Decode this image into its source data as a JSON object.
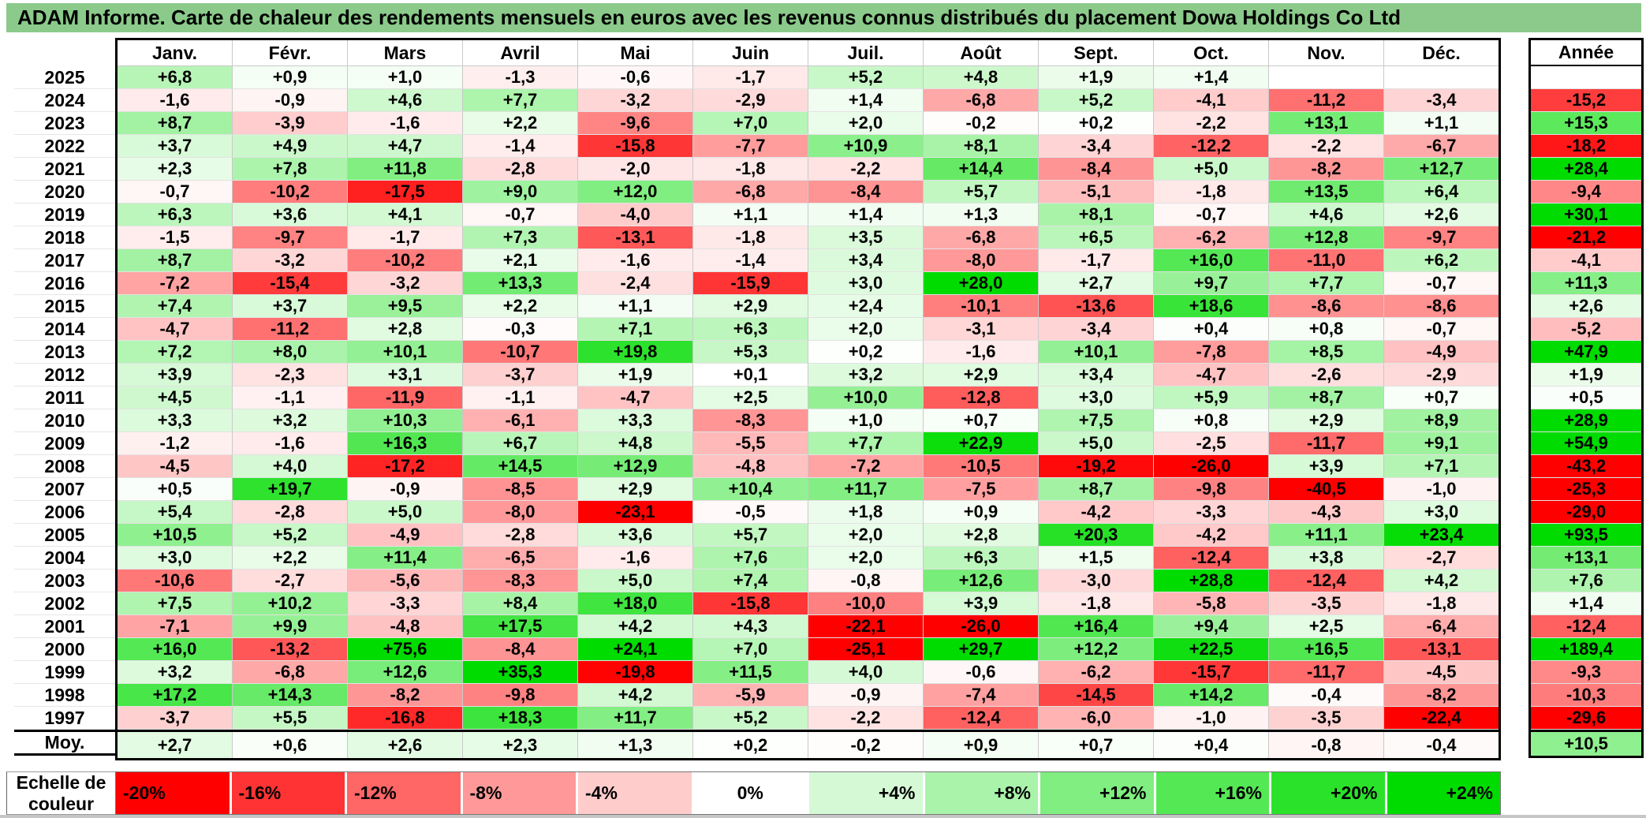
{
  "title": "ADAM Informe. Carte de chaleur des rendements mensuels en euros avec les revenus connus distribués du placement Dowa Holdings Co Ltd",
  "theme": {
    "title_bg": "#8BCA8B",
    "grid_vertical": "#c9c9c9",
    "grid_horizontal": "#e2e2e2",
    "table_border": "#000000",
    "negative_color": "#FF0000",
    "positive_color": "#00DC00",
    "neutral_color": "#FFFFFF"
  },
  "chart_data": {
    "type": "heatmap",
    "unit": "%",
    "decimal_separator": ",",
    "columns": [
      "Janv.",
      "Févr.",
      "Mars",
      "Avril",
      "Mai",
      "Juin",
      "Juil.",
      "Août",
      "Sept.",
      "Oct.",
      "Nov.",
      "Déc."
    ],
    "annual_label": "Année",
    "average_label": "Moy.",
    "rows": [
      {
        "year": "2025",
        "values": [
          6.8,
          0.9,
          1.0,
          -1.3,
          -0.6,
          -1.7,
          5.2,
          4.8,
          1.9,
          1.4,
          null,
          null
        ],
        "annual": null
      },
      {
        "year": "2024",
        "values": [
          -1.6,
          -0.9,
          4.6,
          7.7,
          -3.2,
          -2.9,
          1.4,
          -6.8,
          5.2,
          -4.1,
          -11.2,
          -3.4
        ],
        "annual": -15.2
      },
      {
        "year": "2023",
        "values": [
          8.7,
          -3.9,
          -1.6,
          2.2,
          -9.6,
          7.0,
          2.0,
          -0.2,
          0.2,
          -2.2,
          13.1,
          1.1
        ],
        "annual": 15.3
      },
      {
        "year": "2022",
        "values": [
          3.7,
          4.9,
          4.7,
          -1.4,
          -15.8,
          -7.7,
          10.9,
          8.1,
          -3.4,
          -12.2,
          -2.2,
          -6.7
        ],
        "annual": -18.2
      },
      {
        "year": "2021",
        "values": [
          2.3,
          7.8,
          11.8,
          -2.8,
          -2.0,
          -1.8,
          -2.2,
          14.4,
          -8.4,
          5.0,
          -8.2,
          12.7
        ],
        "annual": 28.4
      },
      {
        "year": "2020",
        "values": [
          -0.7,
          -10.2,
          -17.5,
          9.0,
          12.0,
          -6.8,
          -8.4,
          5.7,
          -5.1,
          -1.8,
          13.5,
          6.4
        ],
        "annual": -9.4
      },
      {
        "year": "2019",
        "values": [
          6.3,
          3.6,
          4.1,
          -0.7,
          -4.0,
          1.1,
          1.4,
          1.3,
          8.1,
          -0.7,
          4.6,
          2.6
        ],
        "annual": 30.1
      },
      {
        "year": "2018",
        "values": [
          -1.5,
          -9.7,
          -1.7,
          7.3,
          -13.1,
          -1.8,
          3.5,
          -6.8,
          6.5,
          -6.2,
          12.8,
          -9.7
        ],
        "annual": -21.2
      },
      {
        "year": "2017",
        "values": [
          8.7,
          -3.2,
          -10.2,
          2.1,
          -1.6,
          -1.4,
          3.4,
          -8.0,
          -1.7,
          16.0,
          -11.0,
          6.2
        ],
        "annual": -4.1
      },
      {
        "year": "2016",
        "values": [
          -7.2,
          -15.4,
          -3.2,
          13.3,
          -2.4,
          -15.9,
          3.0,
          28.0,
          2.7,
          9.7,
          7.7,
          -0.7
        ],
        "annual": 11.3
      },
      {
        "year": "2015",
        "values": [
          7.4,
          3.7,
          9.5,
          2.2,
          1.1,
          2.9,
          2.4,
          -10.1,
          -13.6,
          18.6,
          -8.6,
          -8.6
        ],
        "annual": 2.6
      },
      {
        "year": "2014",
        "values": [
          -4.7,
          -11.2,
          2.8,
          -0.3,
          7.1,
          6.3,
          2.0,
          -3.1,
          -3.4,
          0.4,
          0.8,
          -0.7
        ],
        "annual": -5.2
      },
      {
        "year": "2013",
        "values": [
          7.2,
          8.0,
          10.1,
          -10.7,
          19.8,
          5.3,
          0.2,
          -1.6,
          10.1,
          -7.8,
          8.5,
          -4.9
        ],
        "annual": 47.9
      },
      {
        "year": "2012",
        "values": [
          3.9,
          -2.3,
          3.1,
          -3.7,
          1.9,
          0.1,
          3.2,
          2.9,
          3.4,
          -4.7,
          -2.6,
          -2.9
        ],
        "annual": 1.9
      },
      {
        "year": "2011",
        "values": [
          4.5,
          -1.1,
          -11.9,
          -1.1,
          -4.7,
          2.5,
          10.0,
          -12.8,
          3.0,
          5.9,
          8.7,
          0.7
        ],
        "annual": 0.5
      },
      {
        "year": "2010",
        "values": [
          3.3,
          3.2,
          10.3,
          -6.1,
          3.3,
          -8.3,
          1.0,
          0.7,
          7.5,
          0.8,
          2.9,
          8.9
        ],
        "annual": 28.9
      },
      {
        "year": "2009",
        "values": [
          -1.2,
          -1.6,
          16.3,
          6.7,
          4.8,
          -5.5,
          7.7,
          22.9,
          5.0,
          -2.5,
          -11.7,
          9.1
        ],
        "annual": 54.9
      },
      {
        "year": "2008",
        "values": [
          -4.5,
          4.0,
          -17.2,
          14.5,
          12.9,
          -4.8,
          -7.2,
          -10.5,
          -19.2,
          -26.0,
          3.9,
          7.1
        ],
        "annual": -43.2
      },
      {
        "year": "2007",
        "values": [
          0.5,
          19.7,
          -0.9,
          -8.5,
          2.9,
          10.4,
          11.7,
          -7.5,
          8.7,
          -9.8,
          -40.5,
          -1.0
        ],
        "annual": -25.3
      },
      {
        "year": "2006",
        "values": [
          5.4,
          -2.8,
          5.0,
          -8.0,
          -23.1,
          -0.5,
          1.8,
          0.9,
          -4.2,
          -3.3,
          -4.3,
          3.0
        ],
        "annual": -29.0
      },
      {
        "year": "2005",
        "values": [
          10.5,
          5.2,
          -4.9,
          -2.8,
          3.6,
          5.7,
          2.0,
          2.8,
          20.3,
          -4.2,
          11.1,
          23.4
        ],
        "annual": 93.5
      },
      {
        "year": "2004",
        "values": [
          3.0,
          2.2,
          11.4,
          -6.5,
          -1.6,
          7.6,
          2.0,
          6.3,
          1.5,
          -12.4,
          3.8,
          -2.7
        ],
        "annual": 13.1
      },
      {
        "year": "2003",
        "values": [
          -10.6,
          -2.7,
          -5.6,
          -8.3,
          5.0,
          7.4,
          -0.8,
          12.6,
          -3.0,
          28.8,
          -12.4,
          4.2
        ],
        "annual": 7.6
      },
      {
        "year": "2002",
        "values": [
          7.5,
          10.2,
          -3.3,
          8.4,
          18.0,
          -15.8,
          -10.0,
          3.9,
          -1.8,
          -5.8,
          -3.5,
          -1.8
        ],
        "annual": 1.4
      },
      {
        "year": "2001",
        "values": [
          -7.1,
          9.9,
          -4.8,
          17.5,
          4.2,
          4.3,
          -22.1,
          -26.0,
          16.4,
          9.4,
          2.5,
          -6.4
        ],
        "annual": -12.4
      },
      {
        "year": "2000",
        "values": [
          16.0,
          -13.2,
          75.6,
          -8.4,
          24.1,
          7.0,
          -25.1,
          29.7,
          12.2,
          22.5,
          16.5,
          -13.1
        ],
        "annual": 189.4
      },
      {
        "year": "1999",
        "values": [
          3.2,
          -6.8,
          12.6,
          35.3,
          -19.8,
          11.5,
          4.0,
          -0.6,
          -6.2,
          -15.7,
          -11.7,
          -4.5
        ],
        "annual": -9.3
      },
      {
        "year": "1998",
        "values": [
          17.2,
          14.3,
          -8.2,
          -9.8,
          4.2,
          -5.9,
          -0.9,
          -7.4,
          -14.5,
          14.2,
          -0.4,
          -8.2
        ],
        "annual": -10.3
      },
      {
        "year": "1997",
        "values": [
          -3.7,
          5.5,
          -16.8,
          18.3,
          11.7,
          5.2,
          -2.2,
          -12.4,
          -6.0,
          -1.0,
          -3.5,
          -22.4
        ],
        "annual": -29.6
      }
    ],
    "average": {
      "values": [
        2.7,
        0.6,
        2.6,
        2.3,
        1.3,
        0.2,
        -0.2,
        0.9,
        0.7,
        0.4,
        -0.8,
        -0.4
      ],
      "annual": 10.5
    },
    "color_scale": {
      "label": "Echelle de couleur",
      "min_value": -20,
      "max_value": 24,
      "min_color": "#FF0000",
      "zero_color": "#FFFFFF",
      "max_color": "#00DC00",
      "ticks": [
        {
          "label": "-20%",
          "value": -20
        },
        {
          "label": "-16%",
          "value": -16
        },
        {
          "label": "-12%",
          "value": -12
        },
        {
          "label": "-8%",
          "value": -8
        },
        {
          "label": "-4%",
          "value": -4
        },
        {
          "label": "0%",
          "value": 0
        },
        {
          "label": "+4%",
          "value": 4
        },
        {
          "label": "+8%",
          "value": 8
        },
        {
          "label": "+12%",
          "value": 12
        },
        {
          "label": "+16%",
          "value": 16
        },
        {
          "label": "+20%",
          "value": 20
        },
        {
          "label": "+24%",
          "value": 24
        }
      ]
    }
  }
}
